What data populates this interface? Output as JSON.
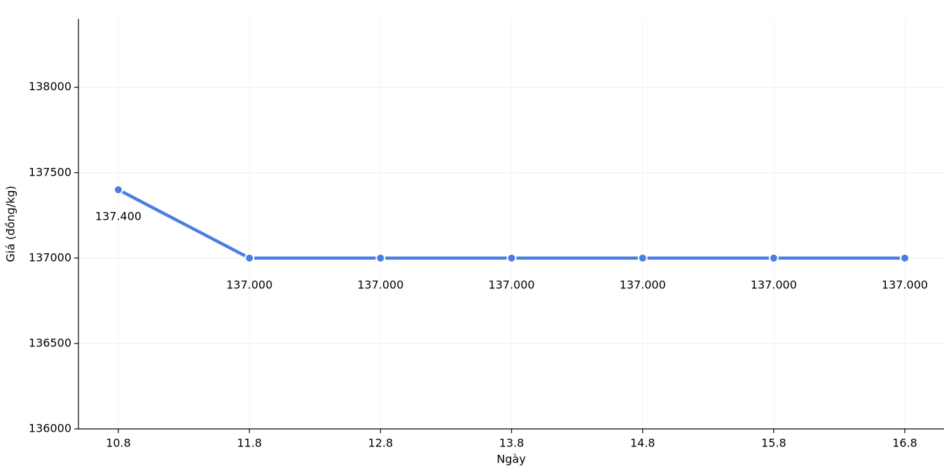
{
  "chart_data": {
    "type": "line",
    "x_label": "Ngày",
    "y_label": "Giá (đồng/kg)",
    "categories": [
      "10.8",
      "11.8",
      "12.8",
      "13.8",
      "14.8",
      "15.8",
      "16.8"
    ],
    "values": [
      137400,
      137000,
      137000,
      137000,
      137000,
      137000,
      137000
    ],
    "value_labels": [
      "137.400",
      "137.000",
      "137.000",
      "137.000",
      "137.000",
      "137.000",
      "137.000"
    ],
    "color": "#4a7fe0",
    "ylim": [
      136000,
      138400
    ],
    "yticks": [
      136000,
      136500,
      137000,
      137500,
      138000
    ],
    "grid": true
  }
}
